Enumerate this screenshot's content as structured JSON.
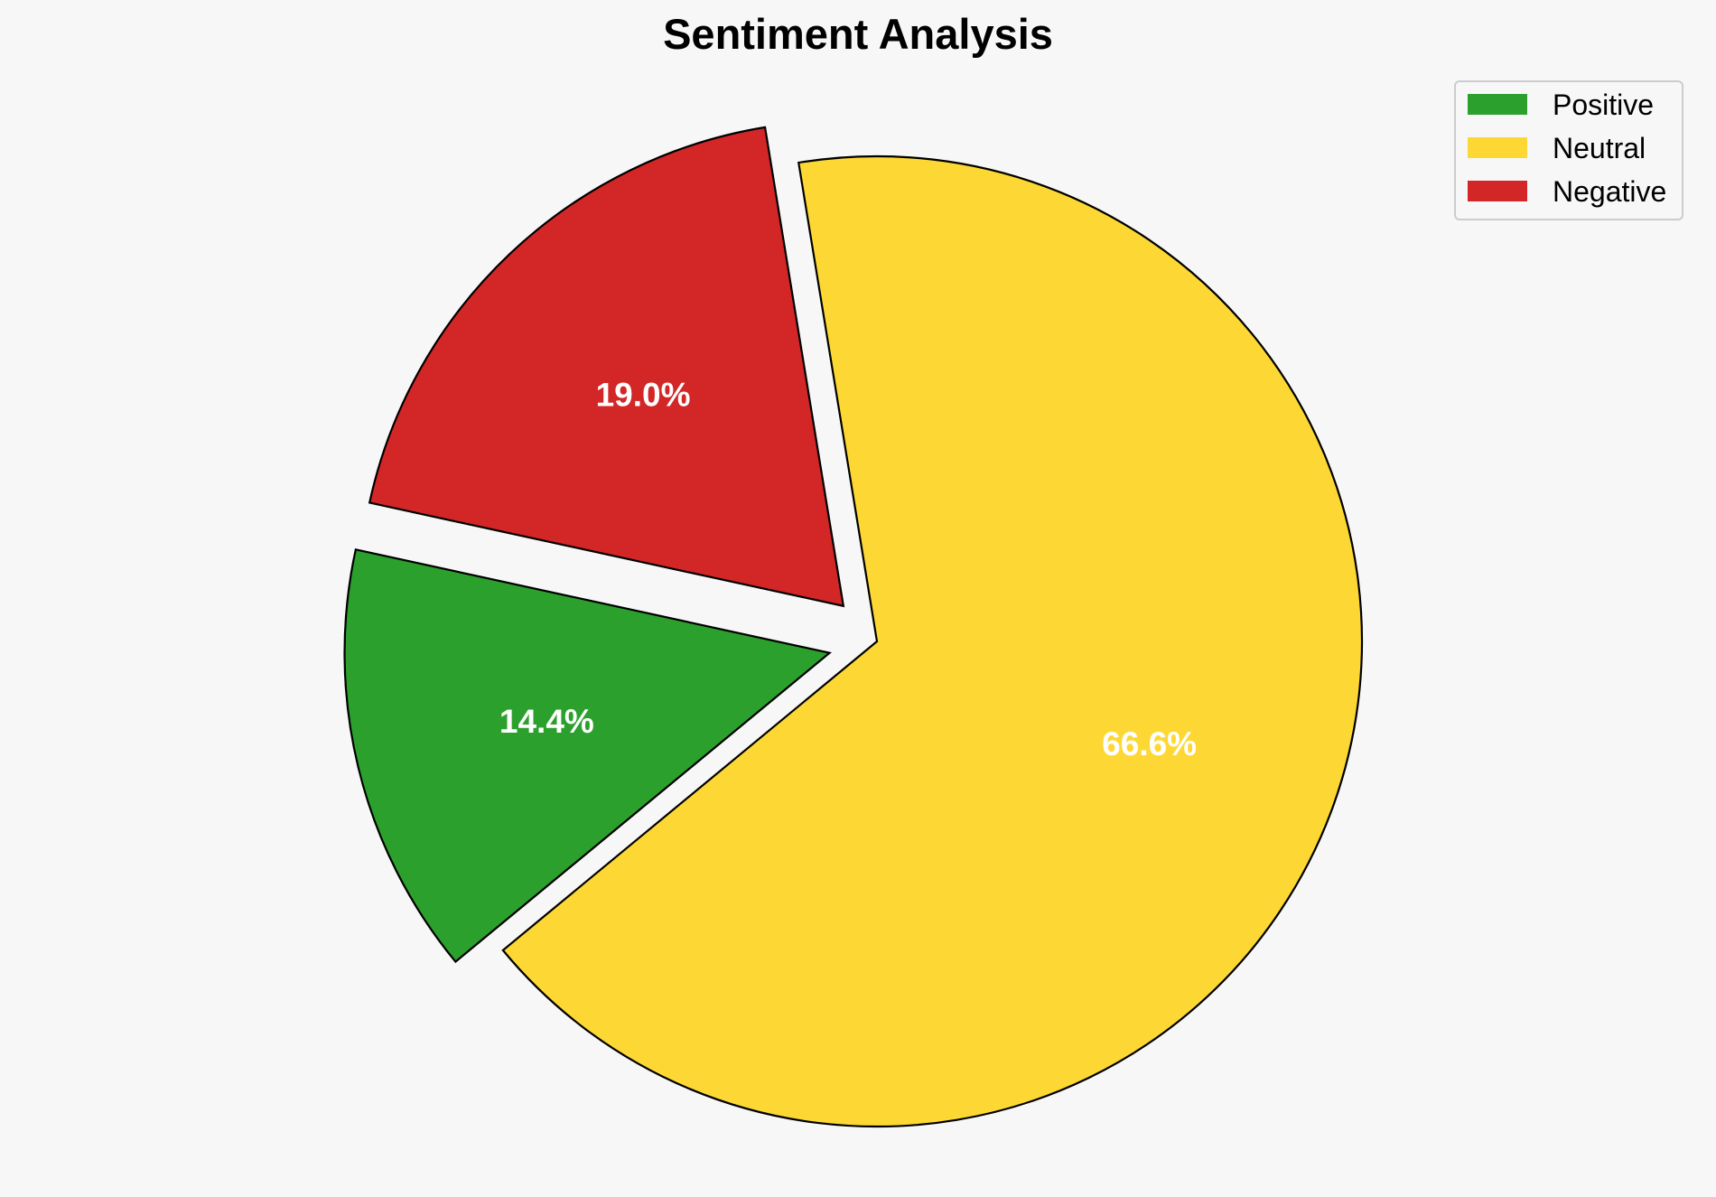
{
  "chart_data": {
    "type": "pie",
    "title": "Sentiment Analysis",
    "slices": [
      {
        "label": "Positive",
        "value": 14.4,
        "display": "14.4%",
        "color": "#2ca02c",
        "exploded": true
      },
      {
        "label": "Neutral",
        "value": 66.6,
        "display": "66.6%",
        "color": "#fdd835",
        "exploded": false
      },
      {
        "label": "Negative",
        "value": 19.0,
        "display": "19.0%",
        "color": "#d32626",
        "exploded": true
      }
    ],
    "start_angle_deg": 167.7,
    "direction": "counterclockwise",
    "label_color": "#ffffff",
    "edge_color": "#000000",
    "background": "#f7f7f7",
    "legend": {
      "placement": "top-right",
      "entries": [
        "Positive",
        "Neutral",
        "Negative"
      ]
    }
  }
}
